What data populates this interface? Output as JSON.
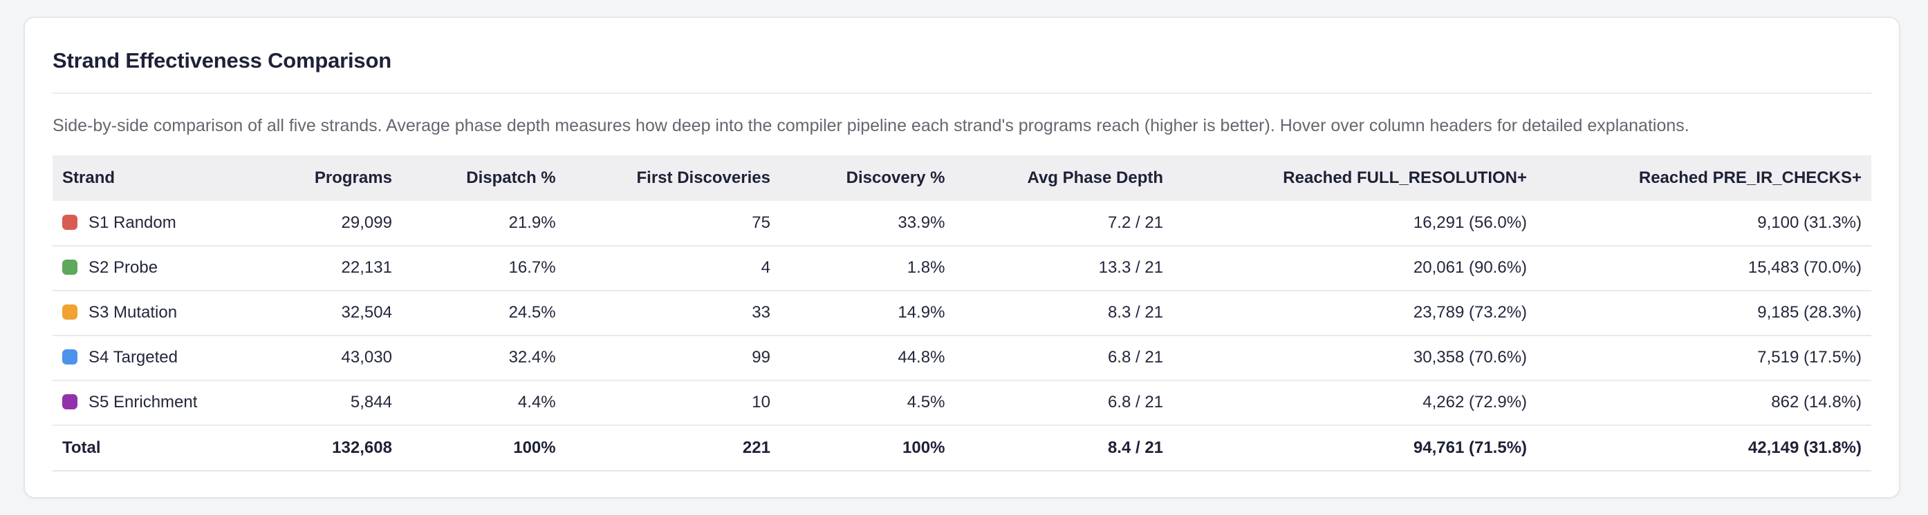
{
  "card": {
    "title": "Strand Effectiveness Comparison",
    "description": "Side-by-side comparison of all five strands. Average phase depth measures how deep into the compiler pipeline each strand's programs reach (higher is better). Hover over column headers for detailed explanations."
  },
  "table": {
    "columns": [
      {
        "label": "Strand",
        "align": "left",
        "width": "11.2%"
      },
      {
        "label": "Programs",
        "align": "right",
        "width": "8.0%"
      },
      {
        "label": "Dispatch %",
        "align": "right",
        "width": "9.0%"
      },
      {
        "label": "First Discoveries",
        "align": "right",
        "width": "11.8%"
      },
      {
        "label": "Discovery %",
        "align": "right",
        "width": "9.6%"
      },
      {
        "label": "Avg Phase Depth",
        "align": "right",
        "width": "12.0%"
      },
      {
        "label": "Reached FULL_RESOLUTION+",
        "align": "right",
        "width": "20.0%"
      },
      {
        "label": "Reached PRE_IR_CHECKS+",
        "align": "right",
        "width": "18.4%"
      }
    ],
    "rows": [
      {
        "strand": "S1 Random",
        "swatch_color": "#d95c52",
        "values": [
          "29,099",
          "21.9%",
          "75",
          "33.9%",
          "7.2 / 21",
          "16,291 (56.0%)",
          "9,100 (31.3%)"
        ]
      },
      {
        "strand": "S2 Probe",
        "swatch_color": "#5ca85c",
        "values": [
          "22,131",
          "16.7%",
          "4",
          "1.8%",
          "13.3 / 21",
          "20,061 (90.6%)",
          "15,483 (70.0%)"
        ]
      },
      {
        "strand": "S3 Mutation",
        "swatch_color": "#f0a232",
        "values": [
          "32,504",
          "24.5%",
          "33",
          "14.9%",
          "8.3 / 21",
          "23,789 (73.2%)",
          "9,185 (28.3%)"
        ]
      },
      {
        "strand": "S4 Targeted",
        "swatch_color": "#4b93ec",
        "values": [
          "43,030",
          "32.4%",
          "99",
          "44.8%",
          "6.8 / 21",
          "30,358 (70.6%)",
          "7,519 (17.5%)"
        ]
      },
      {
        "strand": "S5 Enrichment",
        "swatch_color": "#9331ab",
        "values": [
          "5,844",
          "4.4%",
          "10",
          "4.5%",
          "6.8 / 21",
          "4,262 (72.9%)",
          "862 (14.8%)"
        ]
      }
    ],
    "total": {
      "strand": "Total",
      "values": [
        "132,608",
        "100%",
        "221",
        "100%",
        "8.4 / 21",
        "94,761 (71.5%)",
        "42,149 (31.8%)"
      ]
    }
  }
}
